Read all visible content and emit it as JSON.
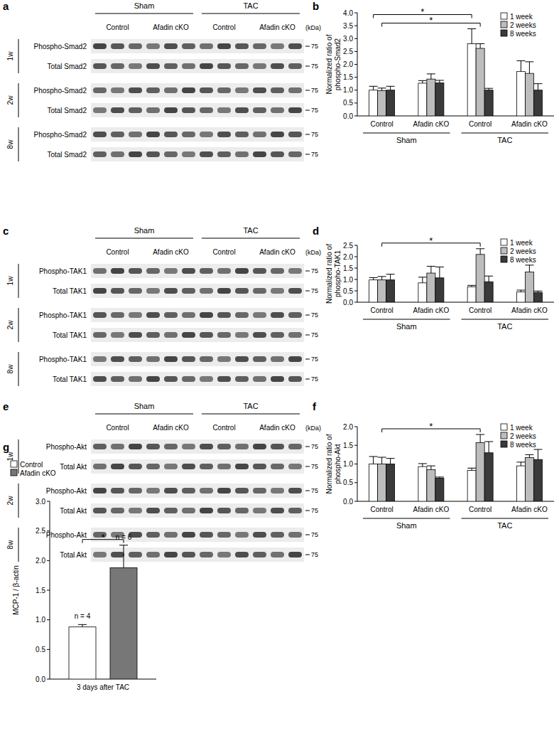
{
  "blots": [
    {
      "panel": "a",
      "groups": [
        "Sham",
        "TAC"
      ],
      "subgroups": [
        "Control",
        "Afadin cKO",
        "Control",
        "Afadin cKO"
      ],
      "unit": "(kDa)",
      "rows": [
        {
          "time": "1w",
          "bands": [
            {
              "label": "Phospho-Smad2",
              "marker": 75
            },
            {
              "label": "Total Smad2",
              "marker": 75
            }
          ]
        },
        {
          "time": "2w",
          "bands": [
            {
              "label": "Phospho-Smad2",
              "marker": 75
            },
            {
              "label": "Total Smad2",
              "marker": 75
            }
          ]
        },
        {
          "time": "8w",
          "bands": [
            {
              "label": "Phospho-Smad2",
              "marker": 75
            },
            {
              "label": "Total Smad2",
              "marker": 75
            }
          ]
        }
      ]
    },
    {
      "panel": "c",
      "groups": [
        "Sham",
        "TAC"
      ],
      "subgroups": [
        "Control",
        "Afadin cKO",
        "Control",
        "Afadin cKO"
      ],
      "unit": "(kDa)",
      "rows": [
        {
          "time": "1w",
          "bands": [
            {
              "label": "Phospho-TAK1",
              "marker": 75
            },
            {
              "label": "Total TAK1",
              "marker": 75
            }
          ]
        },
        {
          "time": "2w",
          "bands": [
            {
              "label": "Phospho-TAK1",
              "marker": 75
            },
            {
              "label": "Total TAK1",
              "marker": 75
            }
          ]
        },
        {
          "time": "8w",
          "bands": [
            {
              "label": "Phospho-TAK1",
              "marker": 75
            },
            {
              "label": "Total TAK1",
              "marker": 75
            }
          ]
        }
      ]
    },
    {
      "panel": "e",
      "groups": [
        "Sham",
        "TAC"
      ],
      "subgroups": [
        "Control",
        "Afadin cKO",
        "Control",
        "Afadin cKO"
      ],
      "unit": "(kDa)",
      "rows": [
        {
          "time": "1w",
          "bands": [
            {
              "label": "Phospho-Akt",
              "marker": 75
            },
            {
              "label": "Total Akt",
              "marker": 75
            }
          ]
        },
        {
          "time": "2w",
          "bands": [
            {
              "label": "Phospho-Akt",
              "marker": 75
            },
            {
              "label": "Total Akt",
              "marker": 75
            }
          ]
        },
        {
          "time": "8w",
          "bands": [
            {
              "label": "Phospho-Akt",
              "marker": 75
            },
            {
              "label": "Total Akt",
              "marker": 75
            }
          ]
        }
      ]
    }
  ],
  "chart_data": [
    {
      "panel": "b",
      "type": "bar",
      "categories": [
        "Control",
        "Afadin cKO",
        "Control",
        "Afadin cKO"
      ],
      "groups": [
        "Sham",
        "TAC"
      ],
      "ylabel": [
        "Normalized ratio of",
        "phospho-Smad2"
      ],
      "ylim": [
        0,
        4
      ],
      "yticks": [
        {
          "value": 0,
          "label": "0.0"
        },
        0.5,
        {
          "value": 1,
          "label": "1.0"
        },
        1.5,
        {
          "value": 2,
          "label": "2.0"
        },
        2.5,
        {
          "value": 3,
          "label": "3.0"
        },
        3.5,
        {
          "value": 4,
          "label": "4.0"
        }
      ],
      "legend": "top-right",
      "series": [
        {
          "name": "1 week",
          "color": "#ffffff",
          "values": [
            1.0,
            1.27,
            2.8,
            1.72
          ],
          "errors": [
            0.15,
            0.1,
            0.58,
            0.42
          ]
        },
        {
          "name": "2 weeks",
          "color": "#bdbdbd",
          "values": [
            0.98,
            1.43,
            2.62,
            1.65
          ],
          "errors": [
            0.1,
            0.2,
            0.18,
            0.45
          ]
        },
        {
          "name": "8 weeks",
          "color": "#3a3a3a",
          "values": [
            1.0,
            1.28,
            1.0,
            1.0
          ],
          "errors": [
            0.15,
            0.1,
            0.07,
            0.25
          ]
        }
      ],
      "annotations": [
        {
          "text": "*",
          "from": {
            "category": 0,
            "series": 1
          },
          "to": {
            "category": 2,
            "series": 1
          }
        },
        {
          "text": "*",
          "from": {
            "category": 0,
            "series": 0
          },
          "to": {
            "category": 2,
            "series": 0
          }
        }
      ]
    },
    {
      "panel": "d",
      "type": "bar",
      "categories": [
        "Control",
        "Afadin cKO",
        "Control",
        "Afadin cKO"
      ],
      "groups": [
        "Sham",
        "TAC"
      ],
      "ylabel": [
        "Normalized ratio of",
        "phospho-TAK1"
      ],
      "ylim": [
        0,
        2.5
      ],
      "yticks": [
        {
          "value": 0,
          "label": "0.0"
        },
        0.5,
        {
          "value": 1,
          "label": "1.0"
        },
        1.5,
        {
          "value": 2,
          "label": "2.0"
        },
        2.5
      ],
      "legend": "top-right",
      "series": [
        {
          "name": "1 week",
          "color": "#ffffff",
          "values": [
            0.98,
            0.85,
            0.68,
            0.45
          ],
          "errors": [
            0.1,
            0.25,
            0.06,
            0.08
          ]
        },
        {
          "name": "2 weeks",
          "color": "#bdbdbd",
          "values": [
            0.98,
            1.28,
            2.1,
            1.33
          ],
          "errors": [
            0.15,
            0.3,
            0.25,
            0.3
          ]
        },
        {
          "name": "8 weeks",
          "color": "#3a3a3a",
          "values": [
            0.98,
            1.07,
            0.9,
            0.43
          ],
          "errors": [
            0.25,
            0.48,
            0.25,
            0.06
          ]
        }
      ],
      "annotations": [
        {
          "text": "*",
          "from": {
            "category": 0,
            "series": 1
          },
          "to": {
            "category": 2,
            "series": 1
          }
        }
      ]
    },
    {
      "panel": "f",
      "type": "bar",
      "categories": [
        "Control",
        "Afadin cKO",
        "Control",
        "Afadin cKO"
      ],
      "groups": [
        "Sham",
        "TAC"
      ],
      "ylabel": [
        "Normalized ratio of",
        "phospho-Akt"
      ],
      "ylim": [
        0,
        2
      ],
      "yticks": [
        {
          "value": 0,
          "label": "0.0"
        },
        0.5,
        {
          "value": 1,
          "label": "1.0"
        },
        1.5,
        {
          "value": 2,
          "label": "2.0"
        }
      ],
      "legend": "top-right",
      "series": [
        {
          "name": "1 week",
          "color": "#ffffff",
          "values": [
            1.0,
            0.93,
            0.83,
            0.95
          ],
          "errors": [
            0.2,
            0.08,
            0.06,
            0.1
          ]
        },
        {
          "name": "2 weeks",
          "color": "#bdbdbd",
          "values": [
            1.0,
            0.85,
            1.57,
            1.17
          ],
          "errors": [
            0.18,
            0.1,
            0.22,
            0.08
          ]
        },
        {
          "name": "8 weeks",
          "color": "#3a3a3a",
          "values": [
            1.0,
            0.62,
            1.3,
            1.12
          ],
          "errors": [
            0.15,
            0.03,
            0.3,
            0.27
          ]
        }
      ],
      "annotations": [
        {
          "text": "*",
          "from": {
            "category": 0,
            "series": 1
          },
          "to": {
            "category": 2,
            "series": 1
          }
        }
      ]
    },
    {
      "panel": "g",
      "type": "bar",
      "categories": [
        "3 days after TAC"
      ],
      "ylabel": "MCP-1 / β-actin",
      "ylim": [
        0,
        3
      ],
      "yticks": [
        {
          "value": 0,
          "label": "0.0"
        },
        0.5,
        {
          "value": 1,
          "label": "1.0"
        },
        1.5,
        {
          "value": 2,
          "label": "2.0"
        },
        2.5,
        {
          "value": 3,
          "label": "3.0"
        }
      ],
      "legend": "top-left",
      "series": [
        {
          "name": "Control",
          "color": "#ffffff",
          "values": [
            0.88
          ],
          "errors": [
            0.04
          ],
          "sample_labels": [
            "n = 4"
          ]
        },
        {
          "name": "Afadin cKO",
          "color": "#777777",
          "values": [
            1.88
          ],
          "errors": [
            0.38
          ],
          "sample_labels": [
            "n = 6"
          ]
        }
      ],
      "annotations": [
        {
          "text": "*",
          "from": {
            "category": 0,
            "series": 0
          },
          "to": {
            "category": 0,
            "series": 1
          }
        }
      ]
    }
  ]
}
